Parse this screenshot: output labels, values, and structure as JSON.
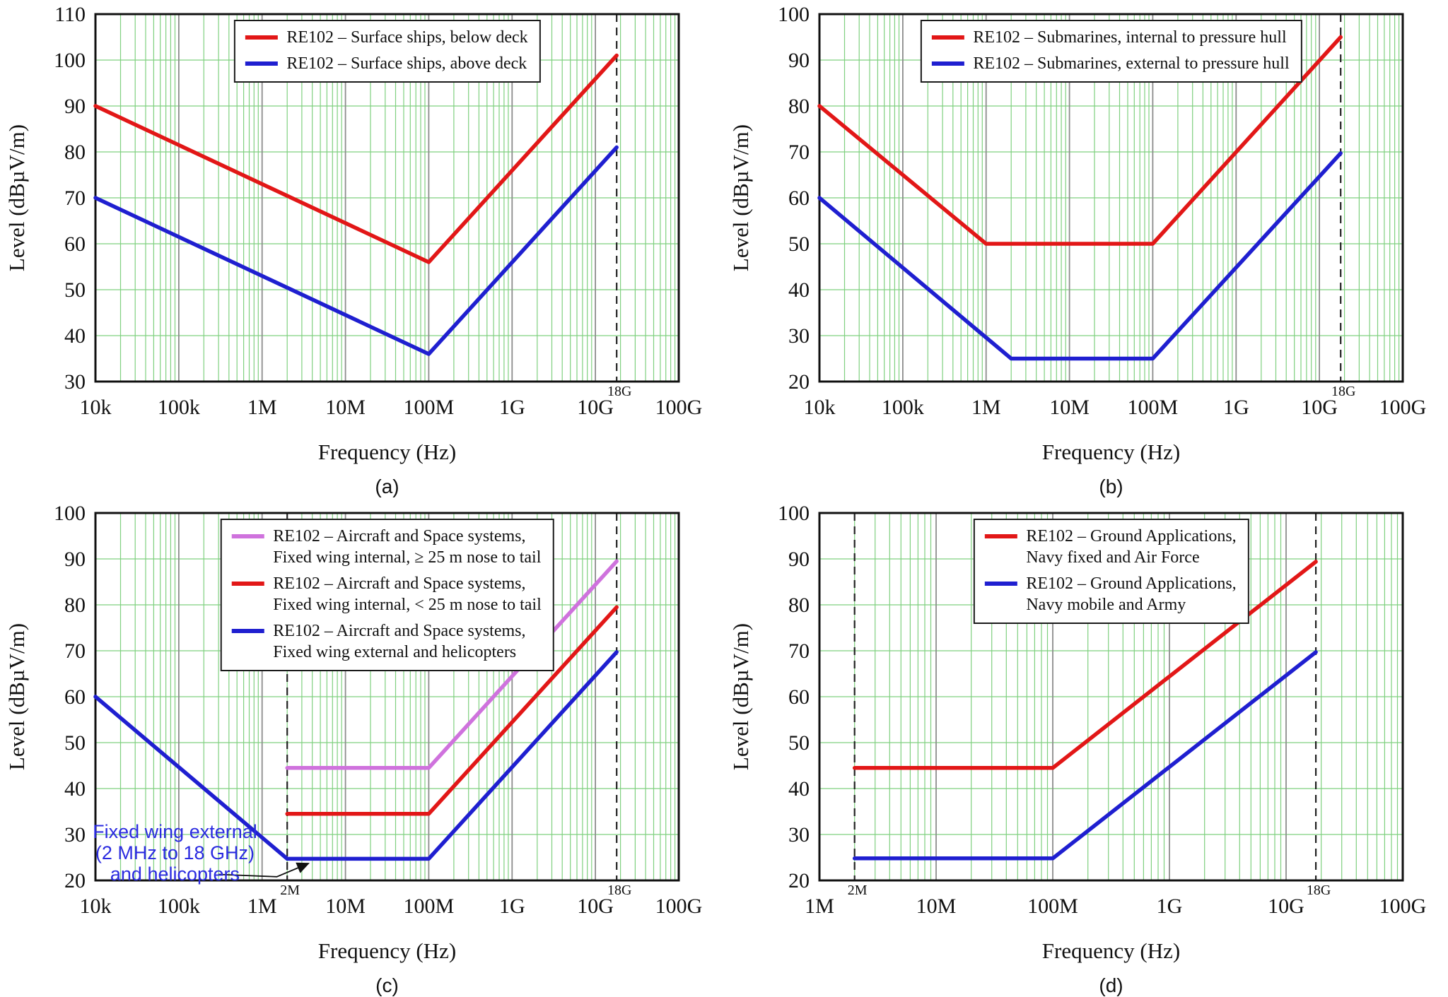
{
  "figure": {
    "background": "#ffffff",
    "description_captions": [
      "(a)",
      "(b)",
      "(c)",
      "(d)"
    ]
  },
  "colors": {
    "red": "#e21717",
    "blue": "#1f1fd0",
    "violet": "#cf72dd",
    "annotation_blue": "#2b2be0",
    "grid_green": "#7fd07f",
    "grid_gray": "#8c8c8c",
    "axis": "#111111",
    "dash": "#222222",
    "text": "#111111"
  },
  "chart_data": {
    "type": "line",
    "x_scale": "log",
    "grid": "green minor log grid, gray decade lines, green 10 dB horizontals",
    "panels": [
      {
        "id": "a",
        "caption": "(a)",
        "xlabel": "Frequency (Hz)",
        "ylabel": "Level (dBµV/m)",
        "x_min_exp": 4,
        "x_max_exp": 11,
        "x_ticks": [
          "10k",
          "100k",
          "1M",
          "10M",
          "100M",
          "1G",
          "10G",
          "100G"
        ],
        "y_min": 30,
        "y_max": 110,
        "y_step": 10,
        "vlines": [
          {
            "freq_hz": 18000000000.0,
            "label": "18G"
          }
        ],
        "series": [
          {
            "name": "RE102 – Surface ships, below deck",
            "color": "red",
            "points": [
              [
                10000.0,
                90
              ],
              [
                100000000.0,
                56
              ],
              [
                18000000000.0,
                101
              ]
            ]
          },
          {
            "name": "RE102 – Surface ships, above deck",
            "color": "blue",
            "points": [
              [
                10000.0,
                70
              ],
              [
                100000000.0,
                36
              ],
              [
                18000000000.0,
                81
              ]
            ]
          }
        ],
        "legend": {
          "entries": [
            {
              "color": "red",
              "lines": [
                "RE102 – Surface ships, below deck"
              ]
            },
            {
              "color": "blue",
              "lines": [
                "RE102 – Surface ships, above deck"
              ]
            }
          ]
        }
      },
      {
        "id": "b",
        "caption": "(b)",
        "xlabel": "Frequency (Hz)",
        "ylabel": "Level (dBµV/m)",
        "x_min_exp": 4,
        "x_max_exp": 11,
        "x_ticks": [
          "10k",
          "100k",
          "1M",
          "10M",
          "100M",
          "1G",
          "10G",
          "100G"
        ],
        "y_min": 20,
        "y_max": 100,
        "y_step": 10,
        "vlines": [
          {
            "freq_hz": 18000000000.0,
            "label": "18G"
          }
        ],
        "series": [
          {
            "name": "RE102 – Submarines, internal to pressure hull",
            "color": "red",
            "points": [
              [
                10000.0,
                80
              ],
              [
                1000000.0,
                50
              ],
              [
                100000000.0,
                50
              ],
              [
                18000000000.0,
                95
              ]
            ]
          },
          {
            "name": "RE102 – Submarines, external to pressure hull",
            "color": "blue",
            "points": [
              [
                10000.0,
                60
              ],
              [
                2000000.0,
                25
              ],
              [
                100000000.0,
                25
              ],
              [
                18000000000.0,
                69.7
              ]
            ]
          }
        ],
        "legend": {
          "entries": [
            {
              "color": "red",
              "lines": [
                "RE102 – Submarines, internal to pressure hull"
              ]
            },
            {
              "color": "blue",
              "lines": [
                "RE102 – Submarines, external to pressure hull"
              ]
            }
          ]
        }
      },
      {
        "id": "c",
        "caption": "(c)",
        "xlabel": "Frequency (Hz)",
        "ylabel": "Level (dBµV/m)",
        "x_min_exp": 4,
        "x_max_exp": 11,
        "x_ticks": [
          "10k",
          "100k",
          "1M",
          "10M",
          "100M",
          "1G",
          "10G",
          "100G"
        ],
        "y_min": 20,
        "y_max": 100,
        "y_step": 10,
        "vlines": [
          {
            "freq_hz": 2000000.0,
            "label": "2M"
          },
          {
            "freq_hz": 18000000000.0,
            "label": "18G"
          }
        ],
        "series": [
          {
            "name": "RE102 – Aircraft and Space systems, Fixed wing internal, ≥ 25 m nose to tail",
            "color": "violet",
            "points": [
              [
                2000000.0,
                44.5
              ],
              [
                100000000.0,
                44.5
              ],
              [
                18000000000.0,
                89.5
              ]
            ]
          },
          {
            "name": "RE102 – Aircraft and Space systems, Fixed wing internal, < 25 m nose to tail",
            "color": "red",
            "points": [
              [
                2000000.0,
                34.5
              ],
              [
                100000000.0,
                34.5
              ],
              [
                18000000000.0,
                79.5
              ]
            ]
          },
          {
            "name": "RE102 – Aircraft and Space systems, Fixed wing external and helicopters",
            "color": "blue",
            "points": [
              [
                10000.0,
                60
              ],
              [
                2000000.0,
                24.7
              ],
              [
                100000000.0,
                24.7
              ],
              [
                18000000000.0,
                69.7
              ]
            ]
          }
        ],
        "legend": {
          "entries": [
            {
              "color": "violet",
              "lines": [
                "RE102 – Aircraft and Space systems,",
                "Fixed wing internal, ≥ 25 m nose to tail"
              ]
            },
            {
              "color": "red",
              "lines": [
                "RE102 – Aircraft and Space systems,",
                "Fixed wing internal, < 25 m nose to tail"
              ]
            },
            {
              "color": "blue",
              "lines": [
                "RE102 – Aircraft and Space systems,",
                "Fixed wing external and helicopters"
              ]
            }
          ]
        },
        "annotation": {
          "lines": [
            "Fixed wing external",
            "(2 MHz to 18 GHz)",
            "and helicopters"
          ],
          "color": "annotation_blue",
          "center_f": 90000.0,
          "top_level": 33,
          "arrow": [
            [
              300000.0,
              21.3
            ],
            [
              1500000.0,
              20.8
            ],
            [
              3600000.0,
              23.7
            ]
          ]
        }
      },
      {
        "id": "d",
        "caption": "(d)",
        "xlabel": "Frequency (Hz)",
        "ylabel": "Level (dBµV/m)",
        "x_min_exp": 6,
        "x_max_exp": 11,
        "x_ticks": [
          "1M",
          "10M",
          "100M",
          "1G",
          "10G",
          "100G"
        ],
        "y_min": 20,
        "y_max": 100,
        "y_step": 10,
        "vlines": [
          {
            "freq_hz": 2000000.0,
            "label": "2M"
          },
          {
            "freq_hz": 18000000000.0,
            "label": "18G"
          }
        ],
        "series": [
          {
            "name": "RE102 – Ground Applications, Navy fixed and Air Force",
            "color": "red",
            "points": [
              [
                2000000.0,
                44.5
              ],
              [
                100000000.0,
                44.5
              ],
              [
                18000000000.0,
                89.4
              ]
            ]
          },
          {
            "name": "RE102 – Ground Applications, Navy mobile and Army",
            "color": "blue",
            "points": [
              [
                2000000.0,
                24.8
              ],
              [
                100000000.0,
                24.8
              ],
              [
                18000000000.0,
                69.7
              ]
            ]
          }
        ],
        "legend": {
          "entries": [
            {
              "color": "red",
              "lines": [
                "RE102 – Ground Applications,",
                "Navy fixed and Air Force"
              ]
            },
            {
              "color": "blue",
              "lines": [
                "RE102 – Ground Applications,",
                "Navy mobile and Army"
              ]
            }
          ]
        }
      }
    ]
  }
}
